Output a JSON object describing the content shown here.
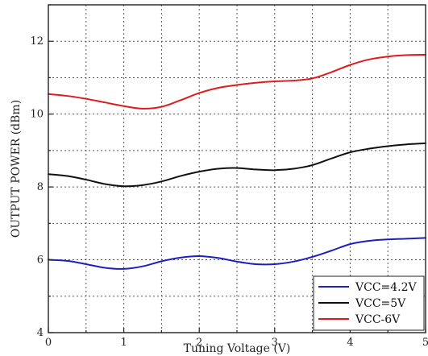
{
  "chart_data": {
    "type": "line",
    "title": "",
    "xlabel": "Tuning Voltage (V)",
    "ylabel": "OUTPUT POWER (dBm)",
    "xlim": [
      0,
      5
    ],
    "ylim": [
      4,
      13
    ],
    "xticks": [
      0,
      1,
      2,
      3,
      4,
      5
    ],
    "yticks": [
      4,
      6,
      8,
      10,
      12
    ],
    "grid": true,
    "legend_position": "bottom-right",
    "series": [
      {
        "name": "VCC=4.2V",
        "color": "#1f1fbf",
        "x": [
          0,
          0.25,
          0.5,
          0.75,
          1.0,
          1.25,
          1.5,
          1.75,
          2.0,
          2.25,
          2.5,
          2.75,
          3.0,
          3.25,
          3.5,
          3.75,
          4.0,
          4.25,
          4.5,
          4.75,
          5.0
        ],
        "y": [
          6.0,
          5.97,
          5.88,
          5.78,
          5.75,
          5.82,
          5.96,
          6.06,
          6.1,
          6.05,
          5.95,
          5.88,
          5.88,
          5.95,
          6.08,
          6.25,
          6.43,
          6.52,
          6.56,
          6.58,
          6.6
        ]
      },
      {
        "name": "VCC=5V",
        "color": "#111111",
        "x": [
          0,
          0.25,
          0.5,
          0.75,
          1.0,
          1.25,
          1.5,
          1.75,
          2.0,
          2.25,
          2.5,
          2.75,
          3.0,
          3.25,
          3.5,
          3.75,
          4.0,
          4.25,
          4.5,
          4.75,
          5.0
        ],
        "y": [
          8.35,
          8.3,
          8.2,
          8.08,
          8.02,
          8.05,
          8.15,
          8.3,
          8.42,
          8.5,
          8.52,
          8.48,
          8.46,
          8.5,
          8.6,
          8.78,
          8.95,
          9.05,
          9.12,
          9.17,
          9.2
        ]
      },
      {
        "name": "VCC-6V",
        "color": "#e01b1b",
        "x": [
          0,
          0.25,
          0.5,
          0.75,
          1.0,
          1.25,
          1.5,
          1.75,
          2.0,
          2.25,
          2.5,
          2.75,
          3.0,
          3.25,
          3.5,
          3.75,
          4.0,
          4.25,
          4.5,
          4.75,
          5.0
        ],
        "y": [
          10.55,
          10.5,
          10.42,
          10.32,
          10.22,
          10.15,
          10.2,
          10.38,
          10.58,
          10.72,
          10.8,
          10.86,
          10.9,
          10.92,
          10.98,
          11.15,
          11.35,
          11.5,
          11.58,
          11.62,
          11.63
        ]
      }
    ]
  }
}
